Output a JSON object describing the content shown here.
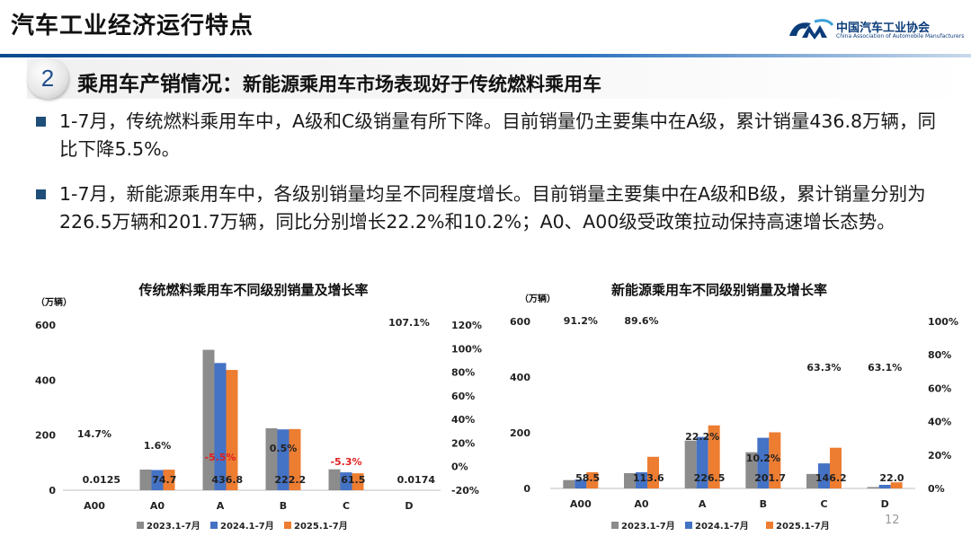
{
  "header": {
    "title": "汽车工业经济运行特点",
    "logo_cn": "中国汽车工业协会",
    "logo_en": "China Association of Automobile Manufacturers"
  },
  "section": {
    "number": "2",
    "title_main": "乘用车产销情况：",
    "title_sub": "新能源乘用车市场表现好于传统燃料乘用车"
  },
  "bullets": [
    "1-7月，传统燃料乘用车中，A级和C级销量有所下降。目前销量仍主要集中在A级，累计销量436.8万辆，同比下降5.5%。",
    "1-7月，新能源乘用车中，各级别销量均呈不同程度增长。目前销量主要集中在A级和B级，累计销量分别为226.5万辆和201.7万辆，同比分别增长22.2%和10.2%；A0、A00级受政策拉动保持高速增长态势。"
  ],
  "page_number": "12",
  "colors": {
    "s2023": "#8c8c8c",
    "s2024": "#4472c4",
    "s2025": "#ed7d31",
    "negative": "#e02020",
    "accent": "#1f4e79"
  },
  "chart_data": [
    {
      "type": "bar",
      "title": "传统燃料乘用车不同级别销量及增长率",
      "ylabel": "（万辆）",
      "categories": [
        "A00",
        "A0",
        "A",
        "B",
        "C",
        "D"
      ],
      "series": [
        {
          "name": "2023.1-7月",
          "values": [
            0.02,
            75,
            510,
            225,
            76,
            0.01
          ]
        },
        {
          "name": "2024.1-7月",
          "values": [
            0.01,
            73.5,
            462,
            221,
            65,
            0.01
          ]
        },
        {
          "name": "2025.1-7月",
          "values": [
            0.0125,
            74.7,
            436.8,
            222.2,
            61.5,
            0.0174
          ]
        }
      ],
      "value_labels": [
        "0.0125",
        "74.7",
        "436.8",
        "222.2",
        "61.5",
        "0.0174"
      ],
      "growth_labels": [
        "14.7%",
        "1.6%",
        "-5.5%",
        "0.5%",
        "-5.3%",
        "107.1%"
      ],
      "growth_values": [
        14.7,
        1.6,
        -5.5,
        0.5,
        -5.3,
        107.1
      ],
      "ylim": [
        0,
        600
      ],
      "yticks": [
        "0",
        "200",
        "400",
        "600"
      ],
      "y2lim": [
        -20,
        120
      ],
      "y2ticks": [
        "-20%",
        "0%",
        "20%",
        "40%",
        "60%",
        "80%",
        "100%",
        "120%"
      ]
    },
    {
      "type": "bar",
      "title": "新能源乘用车不同级别销量及增长率",
      "ylabel": "（万辆）",
      "categories": [
        "A00",
        "A0",
        "A",
        "B",
        "C",
        "D"
      ],
      "series": [
        {
          "name": "2023.1-7月",
          "values": [
            30,
            55,
            172,
            130,
            52,
            5
          ]
        },
        {
          "name": "2024.1-7月",
          "values": [
            32,
            58,
            185,
            182,
            90,
            13
          ]
        },
        {
          "name": "2025.1-7月",
          "values": [
            58.5,
            113.6,
            226.5,
            201.7,
            146.2,
            22.0
          ]
        }
      ],
      "value_labels": [
        "58.5",
        "113.6",
        "226.5",
        "201.7",
        "146.2",
        "22.0"
      ],
      "growth_labels": [
        "91.2%",
        "89.6%",
        "22.2%",
        "10.2%",
        "63.3%",
        "63.1%"
      ],
      "growth_values": [
        91.2,
        89.6,
        22.2,
        10.2,
        63.3,
        63.1
      ],
      "ylim": [
        0,
        600
      ],
      "yticks": [
        "0",
        "200",
        "400",
        "600"
      ],
      "y2lim": [
        0,
        100
      ],
      "y2ticks": [
        "0%",
        "20%",
        "40%",
        "60%",
        "80%",
        "100%"
      ]
    }
  ]
}
